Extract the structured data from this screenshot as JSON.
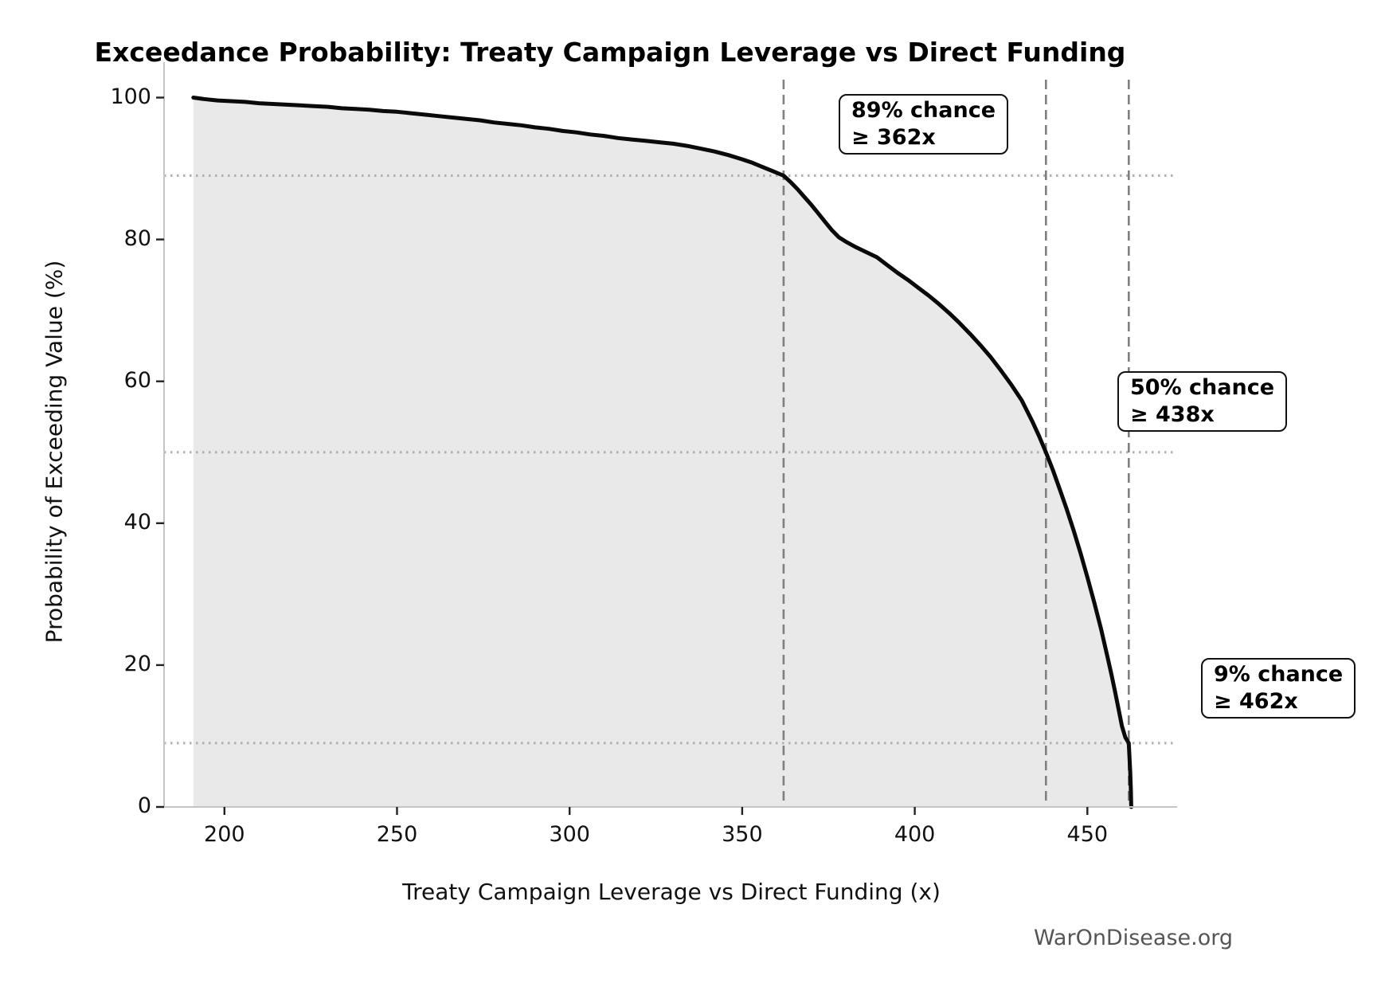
{
  "title": "Exceedance Probability: Treaty Campaign Leverage vs Direct Funding",
  "watermark": "WarOnDisease.org",
  "axes": {
    "x": {
      "label": "Treaty Campaign Leverage vs Direct Funding (x)",
      "ticks": [
        "200",
        "250",
        "300",
        "350",
        "400",
        "450"
      ]
    },
    "y": {
      "label": "Probability of Exceeding Value (%)",
      "ticks": [
        "0",
        "20",
        "40",
        "60",
        "80",
        "100"
      ]
    }
  },
  "annotations": [
    {
      "line1": "89% chance",
      "line2": "≥ 362x",
      "probability_pct": 89,
      "value_x": 362
    },
    {
      "line1": "50% chance",
      "line2": "≥ 438x",
      "probability_pct": 50,
      "value_x": 438
    },
    {
      "line1": "9% chance",
      "line2": "≥ 462x",
      "probability_pct": 9,
      "value_x": 462
    }
  ],
  "chart_data": {
    "type": "line",
    "title": "Exceedance Probability: Treaty Campaign Leverage vs Direct Funding",
    "xlabel": "Treaty Campaign Leverage vs Direct Funding (x)",
    "ylabel": "Probability of Exceeding Value (%)",
    "xlim": [
      182.5,
      476
    ],
    "ylim": [
      0,
      105
    ],
    "x_ticks": [
      200,
      250,
      300,
      350,
      400,
      450
    ],
    "y_ticks": [
      0,
      20,
      40,
      60,
      80,
      100
    ],
    "grid": false,
    "fill_under_curve": true,
    "legend": "none",
    "threshold_lines": {
      "vertical_dashed_x": [
        362,
        438,
        462
      ],
      "horizontal_dotted_probability": [
        89,
        50,
        9
      ]
    },
    "series": [
      {
        "name": "exceedance-curve",
        "points": [
          [
            191,
            100.0
          ],
          [
            194,
            99.8
          ],
          [
            198,
            99.6
          ],
          [
            202,
            99.5
          ],
          [
            206,
            99.4
          ],
          [
            210,
            99.2
          ],
          [
            214,
            99.1
          ],
          [
            218,
            99.0
          ],
          [
            222,
            98.9
          ],
          [
            226,
            98.8
          ],
          [
            230,
            98.7
          ],
          [
            234,
            98.5
          ],
          [
            238,
            98.4
          ],
          [
            242,
            98.3
          ],
          [
            246,
            98.1
          ],
          [
            250,
            98.0
          ],
          [
            254,
            97.8
          ],
          [
            258,
            97.6
          ],
          [
            262,
            97.4
          ],
          [
            266,
            97.2
          ],
          [
            270,
            97.0
          ],
          [
            274,
            96.8
          ],
          [
            278,
            96.5
          ],
          [
            282,
            96.3
          ],
          [
            286,
            96.1
          ],
          [
            290,
            95.8
          ],
          [
            294,
            95.6
          ],
          [
            298,
            95.3
          ],
          [
            302,
            95.1
          ],
          [
            306,
            94.8
          ],
          [
            310,
            94.6
          ],
          [
            314,
            94.3
          ],
          [
            318,
            94.1
          ],
          [
            322,
            93.9
          ],
          [
            326,
            93.7
          ],
          [
            330,
            93.5
          ],
          [
            334,
            93.2
          ],
          [
            338,
            92.8
          ],
          [
            342,
            92.4
          ],
          [
            346,
            91.9
          ],
          [
            350,
            91.3
          ],
          [
            353,
            90.8
          ],
          [
            356,
            90.2
          ],
          [
            359,
            89.6
          ],
          [
            362,
            89.0
          ],
          [
            364,
            88.1
          ],
          [
            366,
            87.1
          ],
          [
            368,
            86.0
          ],
          [
            370,
            84.9
          ],
          [
            372,
            83.7
          ],
          [
            374,
            82.5
          ],
          [
            376,
            81.3
          ],
          [
            378,
            80.3
          ],
          [
            380,
            79.7
          ],
          [
            383,
            78.9
          ],
          [
            386,
            78.2
          ],
          [
            389,
            77.5
          ],
          [
            392,
            76.4
          ],
          [
            395,
            75.3
          ],
          [
            398,
            74.3
          ],
          [
            401,
            73.2
          ],
          [
            404,
            72.1
          ],
          [
            407,
            70.9
          ],
          [
            410,
            69.6
          ],
          [
            413,
            68.2
          ],
          [
            416,
            66.7
          ],
          [
            419,
            65.1
          ],
          [
            422,
            63.4
          ],
          [
            425,
            61.5
          ],
          [
            428,
            59.5
          ],
          [
            431,
            57.3
          ],
          [
            434,
            54.4
          ],
          [
            436,
            52.3
          ],
          [
            438,
            50.0
          ],
          [
            440,
            47.5
          ],
          [
            442,
            44.8
          ],
          [
            444,
            42.0
          ],
          [
            446,
            39.0
          ],
          [
            448,
            35.8
          ],
          [
            450,
            32.4
          ],
          [
            452,
            28.8
          ],
          [
            454,
            25.0
          ],
          [
            456,
            20.8
          ],
          [
            457,
            18.6
          ],
          [
            458,
            16.3
          ],
          [
            459,
            13.9
          ],
          [
            460,
            11.4
          ],
          [
            461,
            9.8
          ],
          [
            462,
            9.0
          ],
          [
            462.2,
            7.0
          ],
          [
            462.4,
            5.0
          ],
          [
            462.6,
            2.5
          ],
          [
            462.7,
            0.0
          ]
        ]
      }
    ],
    "colors": {
      "curve": "#0a0a0a",
      "fill": "#e9e9e9",
      "dashed_threshold": "#808080",
      "dotted_threshold": "#b0b0b0",
      "spine": "#c4c4c4",
      "tick": "#222222",
      "watermark": "#555555"
    }
  }
}
